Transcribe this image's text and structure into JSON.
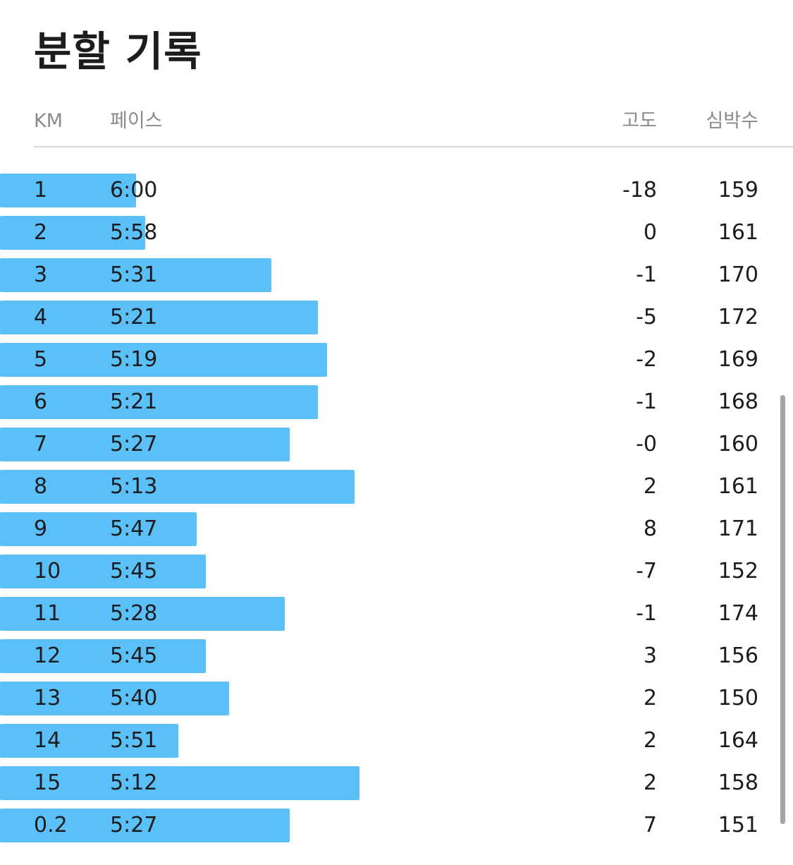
{
  "title": "분할 기록",
  "columns": {
    "km": "KM",
    "pace": "페이스",
    "elevation": "고도",
    "heart_rate": "심박수"
  },
  "colors": {
    "bar": "#5bbff8",
    "text": "#1c1c1e",
    "header_text": "#8a8a8e",
    "divider": "#d8d8dc"
  },
  "splits": [
    {
      "km": "1",
      "pace": "6:00",
      "elevation": "-18",
      "heart_rate": "159"
    },
    {
      "km": "2",
      "pace": "5:58",
      "elevation": "0",
      "heart_rate": "161"
    },
    {
      "km": "3",
      "pace": "5:31",
      "elevation": "-1",
      "heart_rate": "170"
    },
    {
      "km": "4",
      "pace": "5:21",
      "elevation": "-5",
      "heart_rate": "172"
    },
    {
      "km": "5",
      "pace": "5:19",
      "elevation": "-2",
      "heart_rate": "169"
    },
    {
      "km": "6",
      "pace": "5:21",
      "elevation": "-1",
      "heart_rate": "168"
    },
    {
      "km": "7",
      "pace": "5:27",
      "elevation": "-0",
      "heart_rate": "160"
    },
    {
      "km": "8",
      "pace": "5:13",
      "elevation": "2",
      "heart_rate": "161"
    },
    {
      "km": "9",
      "pace": "5:47",
      "elevation": "8",
      "heart_rate": "171"
    },
    {
      "km": "10",
      "pace": "5:45",
      "elevation": "-7",
      "heart_rate": "152"
    },
    {
      "km": "11",
      "pace": "5:28",
      "elevation": "-1",
      "heart_rate": "174"
    },
    {
      "km": "12",
      "pace": "5:45",
      "elevation": "3",
      "heart_rate": "156"
    },
    {
      "km": "13",
      "pace": "5:40",
      "elevation": "2",
      "heart_rate": "150"
    },
    {
      "km": "14",
      "pace": "5:51",
      "elevation": "2",
      "heart_rate": "164"
    },
    {
      "km": "15",
      "pace": "5:12",
      "elevation": "2",
      "heart_rate": "158"
    },
    {
      "km": "0.2",
      "pace": "5:27",
      "elevation": "7",
      "heart_rate": "151"
    }
  ]
}
